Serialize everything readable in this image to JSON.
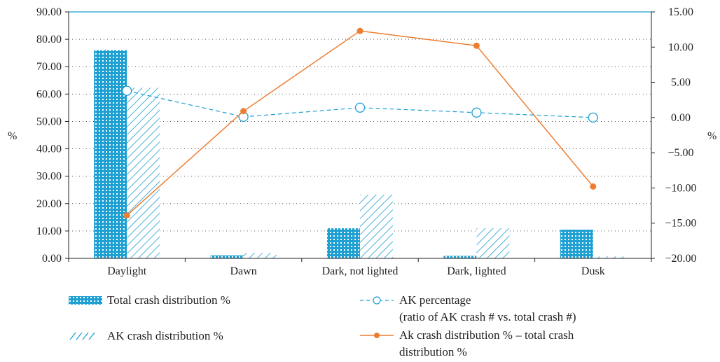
{
  "chart_data": {
    "type": "bar",
    "categories": [
      "Daylight",
      "Dawn",
      "Dark, not lighted",
      "Dark, lighted",
      "Dusk"
    ],
    "ylabel": "%",
    "y2label": "%",
    "ylim": [
      0,
      90
    ],
    "y2lim": [
      -20,
      15
    ],
    "yticks": [
      "0.00",
      "10.00",
      "20.00",
      "30.00",
      "40.00",
      "50.00",
      "60.00",
      "70.00",
      "80.00",
      "90.00"
    ],
    "y2ticks": [
      "−20.00",
      "−15.00",
      "−10.00",
      "−5.00",
      "0.00",
      "5.00",
      "10.00",
      "15.00"
    ],
    "grid": "horizontal dotted",
    "series": [
      {
        "name": "Total crash distribution %",
        "kind": "bar",
        "axis": "left",
        "color": "#1ea0d2",
        "values": [
          76.0,
          1.1,
          11.0,
          0.9,
          10.5
        ]
      },
      {
        "name": "AK crash distribution %",
        "kind": "bar-hatched",
        "axis": "left",
        "color": "#1ea0d2",
        "values": [
          62.3,
          2.0,
          23.3,
          11.0,
          0.7
        ]
      },
      {
        "name": "AK percentage",
        "name_line2": "(ratio of AK crash # vs. total crash #)",
        "kind": "line-dashed-open-circle",
        "axis": "right",
        "color": "#1ea0d2",
        "values": [
          3.8,
          0.1,
          1.4,
          0.7,
          0.0
        ]
      },
      {
        "name": "Ak crash distribution % – total crash",
        "name_line2": "distribution %",
        "kind": "line-filled-circle",
        "axis": "right",
        "color": "#ee7d31",
        "values": [
          -13.9,
          0.9,
          12.3,
          10.2,
          -9.8
        ]
      }
    ]
  }
}
